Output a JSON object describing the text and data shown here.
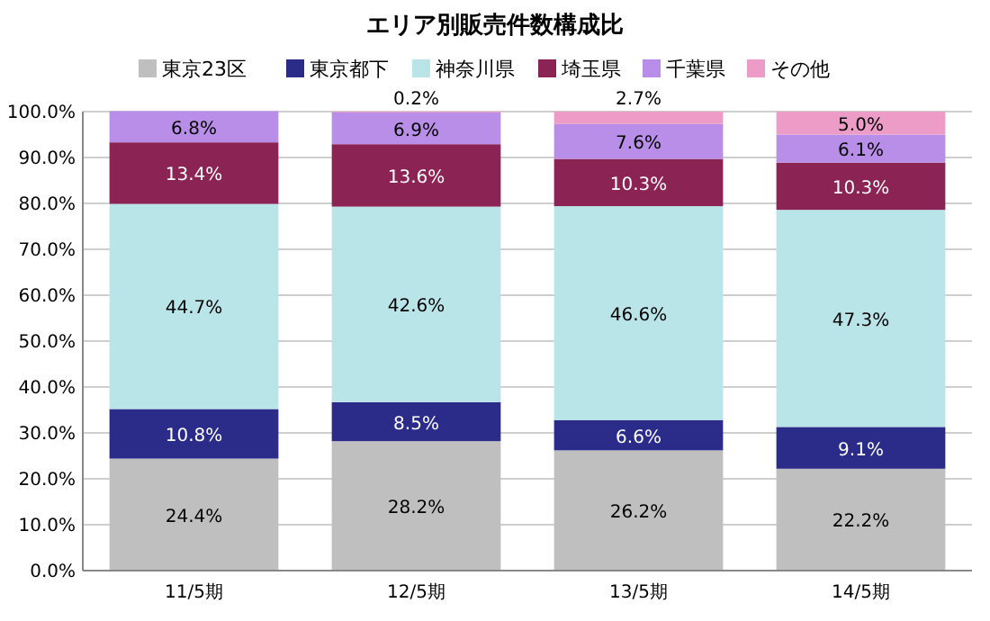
{
  "chart_data": {
    "type": "bar",
    "title": "エリア別販売件数構成比",
    "stacked": true,
    "categories": [
      "11/5期",
      "12/5期",
      "13/5期",
      "14/5期"
    ],
    "series": [
      {
        "name": "東京23区",
        "color": "#bfbfbf",
        "values": [
          24.4,
          28.2,
          26.2,
          22.2
        ],
        "value_labels": [
          "24.4%",
          "28.2%",
          "26.2%",
          "22.2%"
        ]
      },
      {
        "name": "東京都下",
        "color": "#2b2b8a",
        "values": [
          10.8,
          8.5,
          6.6,
          9.1
        ],
        "value_labels": [
          "10.8%",
          "8.5%",
          "6.6%",
          "9.1%"
        ]
      },
      {
        "name": "神奈川県",
        "color": "#b9e5e8",
        "values": [
          44.7,
          42.6,
          46.6,
          47.3
        ],
        "value_labels": [
          "44.7%",
          "42.6%",
          "46.6%",
          "47.3%"
        ]
      },
      {
        "name": "埼玉県",
        "color": "#8c2355",
        "values": [
          13.4,
          13.6,
          10.3,
          10.3
        ],
        "value_labels": [
          "13.4%",
          "13.6%",
          "10.3%",
          "10.3%"
        ]
      },
      {
        "name": "千葉県",
        "color": "#b88ee8",
        "values": [
          6.8,
          6.9,
          7.6,
          6.1
        ],
        "value_labels": [
          "6.8%",
          "6.9%",
          "7.6%",
          "6.1%"
        ]
      },
      {
        "name": "その他",
        "color": "#ec9cc6",
        "values": [
          null,
          0.2,
          2.7,
          5.0
        ],
        "value_labels": [
          null,
          "0.2%",
          "2.7%",
          "5.0%"
        ]
      }
    ],
    "ylim": [
      0,
      100
    ],
    "yticks": [
      {
        "value": 0,
        "label": "0.0%"
      },
      {
        "value": 10,
        "label": "10.0%"
      },
      {
        "value": 20,
        "label": "20.0%"
      },
      {
        "value": 30,
        "label": "30.0%"
      },
      {
        "value": 40,
        "label": "40.0%"
      },
      {
        "value": 50,
        "label": "50.0%"
      },
      {
        "value": 60,
        "label": "60.0%"
      },
      {
        "value": 70,
        "label": "70.0%"
      },
      {
        "value": 80,
        "label": "80.0%"
      },
      {
        "value": 90,
        "label": "90.0%"
      },
      {
        "value": 100,
        "label": "100.0%"
      }
    ],
    "grid": "y",
    "legend": "top"
  }
}
